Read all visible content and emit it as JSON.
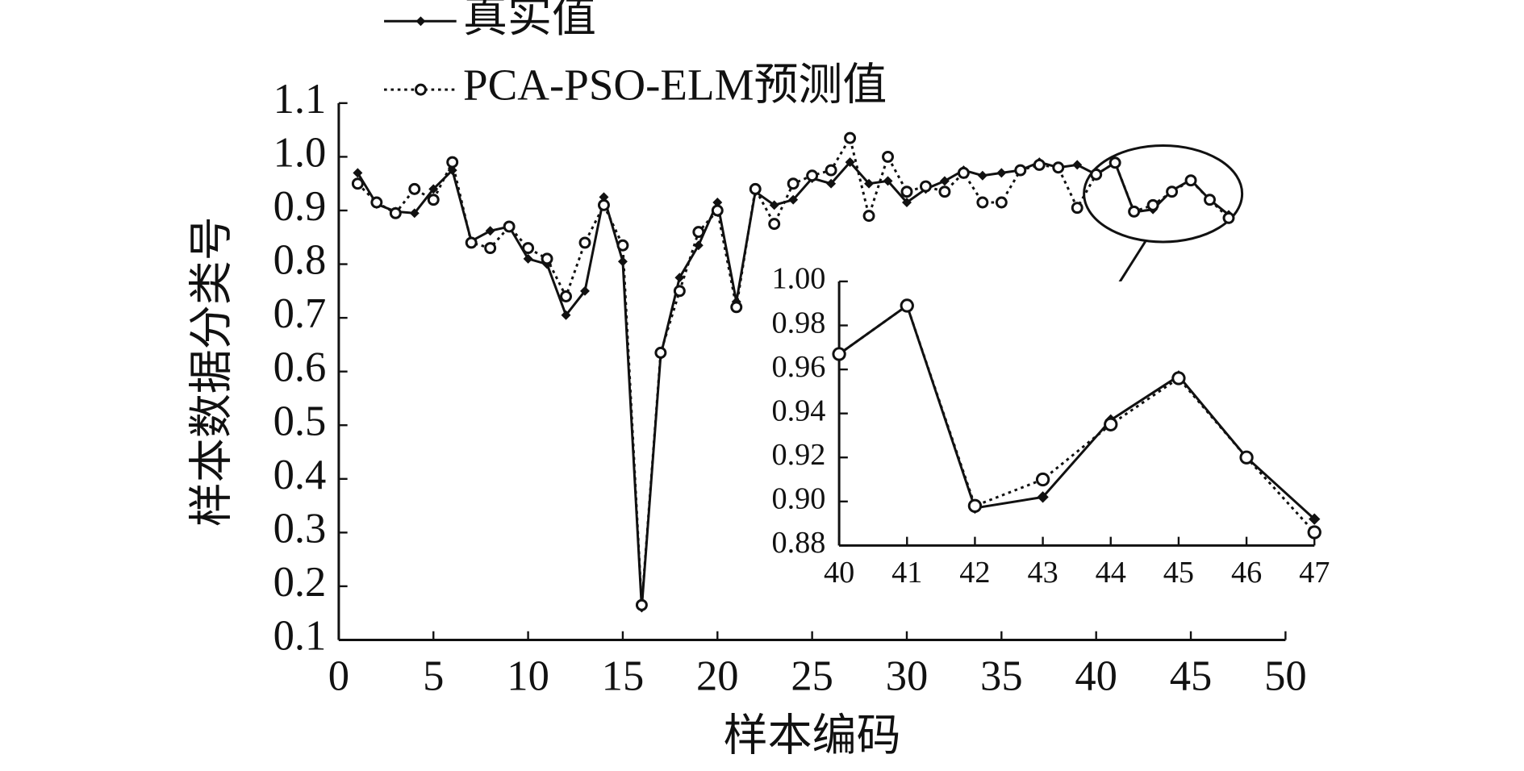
{
  "chart_data": [
    {
      "type": "line",
      "xlabel": "样本编码",
      "ylabel": "样本数据分类号",
      "legend": "top",
      "x": [
        1,
        2,
        3,
        4,
        5,
        6,
        7,
        8,
        9,
        10,
        11,
        12,
        13,
        14,
        15,
        16,
        17,
        18,
        19,
        20,
        21,
        22,
        23,
        24,
        25,
        26,
        27,
        28,
        29,
        30,
        31,
        32,
        33,
        34,
        35,
        36,
        37,
        38,
        39,
        40,
        41,
        42,
        43,
        44,
        45,
        46,
        47
      ],
      "series": [
        {
          "name": "真实值",
          "color": "#111111",
          "line": "solid",
          "marker": "diamond",
          "values": [
            0.97,
            0.912,
            0.898,
            0.895,
            0.94,
            0.975,
            0.843,
            0.862,
            0.87,
            0.81,
            0.8,
            0.705,
            0.75,
            0.925,
            0.805,
            0.16,
            0.63,
            0.775,
            0.835,
            0.915,
            0.73,
            0.935,
            0.91,
            0.92,
            0.96,
            0.95,
            0.99,
            0.95,
            0.955,
            0.915,
            0.94,
            0.955,
            0.975,
            0.965,
            0.97,
            0.975,
            0.99,
            0.98,
            0.985,
            0.967,
            0.989,
            0.897,
            0.902,
            0.937,
            0.957,
            0.92,
            0.892
          ]
        },
        {
          "name": "PCA-PSO-ELM预测值",
          "color": "#111111",
          "line": "dotted",
          "marker": "circle",
          "values": [
            0.95,
            0.915,
            0.895,
            0.94,
            0.92,
            0.99,
            0.84,
            0.83,
            0.87,
            0.83,
            0.81,
            0.74,
            0.84,
            0.91,
            0.835,
            0.165,
            0.635,
            0.75,
            0.86,
            0.9,
            0.72,
            0.94,
            0.875,
            0.95,
            0.965,
            0.975,
            1.035,
            0.89,
            1.0,
            0.935,
            0.945,
            0.935,
            0.97,
            0.915,
            0.915,
            0.975,
            0.985,
            0.98,
            0.905,
            0.967,
            0.989,
            0.898,
            0.91,
            0.935,
            0.956,
            0.92,
            0.886
          ]
        }
      ],
      "xlim": [
        0,
        50
      ],
      "xticks": [
        0,
        5,
        10,
        15,
        20,
        25,
        30,
        35,
        40,
        45,
        50
      ],
      "ylim": [
        0.1,
        1.1
      ],
      "yticks": [
        0.1,
        0.2,
        0.3,
        0.4,
        0.5,
        0.6,
        0.7,
        0.8,
        0.9,
        {
          "value": 1,
          "label": "1.0"
        },
        1.1
      ]
    },
    {
      "type": "line",
      "x": [
        40,
        41,
        42,
        43,
        44,
        45,
        46,
        47
      ],
      "series": [
        {
          "name": "真实值",
          "color": "#111111",
          "line": "solid",
          "marker": "diamond",
          "values": [
            0.967,
            0.989,
            0.897,
            0.902,
            0.937,
            0.957,
            0.92,
            0.892
          ]
        },
        {
          "name": "PCA-PSO-ELM预测值",
          "color": "#111111",
          "line": "dotted",
          "marker": "circle",
          "values": [
            0.967,
            0.989,
            0.898,
            0.91,
            0.935,
            0.956,
            0.92,
            0.886
          ]
        }
      ],
      "xlim": [
        40,
        47
      ],
      "xticks": [
        40,
        41,
        42,
        43,
        44,
        45,
        46,
        47
      ],
      "ylim": [
        0.88,
        1.0
      ],
      "yticks": [
        0.88,
        {
          "value": 0.9,
          "label": "0.90"
        },
        0.92,
        0.94,
        0.96,
        0.98,
        {
          "value": 1,
          "label": "1.00"
        }
      ]
    }
  ]
}
